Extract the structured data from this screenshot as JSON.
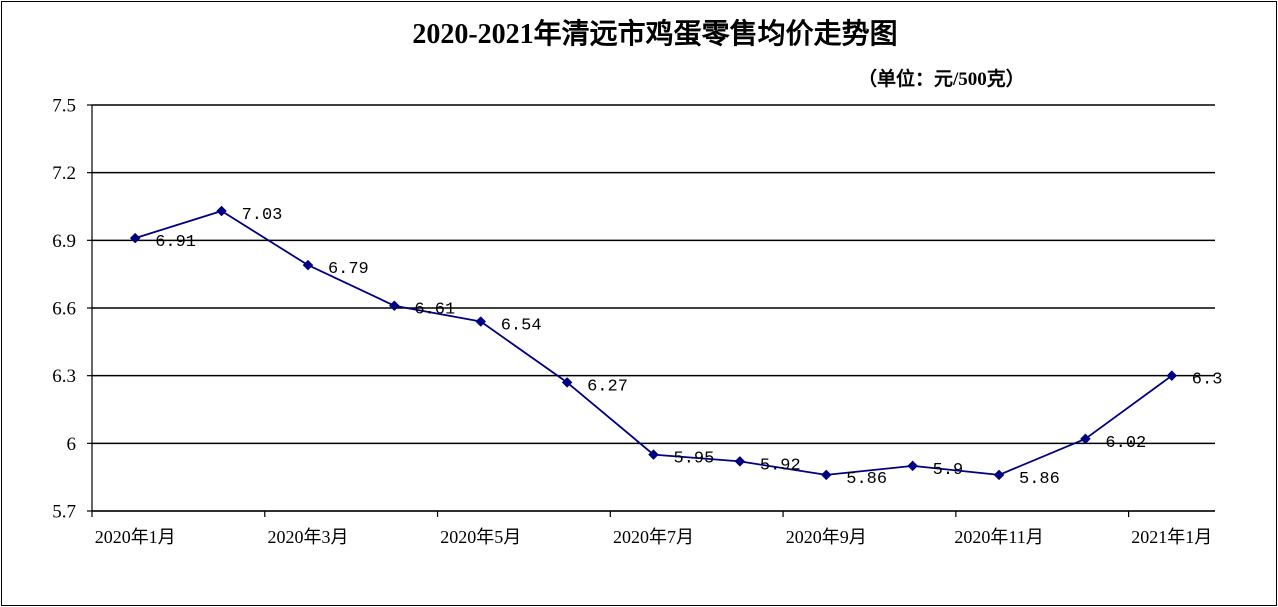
{
  "chart_data": {
    "type": "line",
    "title": "2020-2021年清远市鸡蛋零售均价走势图",
    "unit_label": "（单位：元/500克）",
    "x_tick_labels": [
      "2020年1月",
      "2020年3月",
      "2020年5月",
      "2020年7月",
      "2020年9月",
      "2020年11月",
      "2021年1月"
    ],
    "series": [
      {
        "values": [
          6.91,
          7.03,
          6.79,
          6.61,
          6.54,
          6.27,
          5.95,
          5.92,
          5.86,
          5.9,
          5.86,
          6.02,
          6.3
        ],
        "color": "#000080",
        "marker": "diamond",
        "data_labels": true
      }
    ],
    "ylim": [
      5.7,
      7.5
    ],
    "y_ticks": [
      5.7,
      6,
      6.3,
      6.6,
      6.9,
      7.2,
      7.5
    ],
    "grid": "horizontal",
    "legend": "none"
  }
}
